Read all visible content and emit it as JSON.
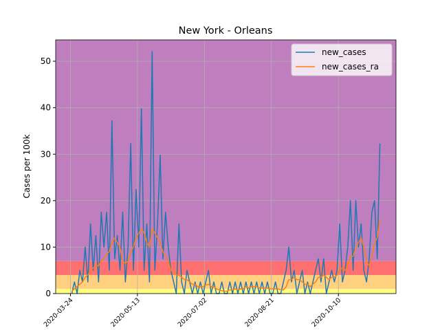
{
  "chart_data": {
    "type": "line",
    "title": "New York - Orleans",
    "ylabel": "Cases per 100k",
    "x": [
      "2020-03-25",
      "2020-03-27",
      "2020-03-29",
      "2020-03-31",
      "2020-04-02",
      "2020-04-04",
      "2020-04-06",
      "2020-04-08",
      "2020-04-10",
      "2020-04-12",
      "2020-04-14",
      "2020-04-16",
      "2020-04-18",
      "2020-04-20",
      "2020-04-22",
      "2020-04-24",
      "2020-04-26",
      "2020-04-28",
      "2020-04-30",
      "2020-05-02",
      "2020-05-04",
      "2020-05-06",
      "2020-05-08",
      "2020-05-10",
      "2020-05-12",
      "2020-05-14",
      "2020-05-16",
      "2020-05-18",
      "2020-05-20",
      "2020-05-22",
      "2020-05-24",
      "2020-05-26",
      "2020-05-28",
      "2020-05-30",
      "2020-06-01",
      "2020-06-03",
      "2020-06-05",
      "2020-06-07",
      "2020-06-09",
      "2020-06-11",
      "2020-06-13",
      "2020-06-15",
      "2020-06-17",
      "2020-06-19",
      "2020-06-21",
      "2020-06-23",
      "2020-06-25",
      "2020-06-27",
      "2020-06-29",
      "2020-07-01",
      "2020-07-03",
      "2020-07-05",
      "2020-07-07",
      "2020-07-09",
      "2020-07-11",
      "2020-07-13",
      "2020-07-15",
      "2020-07-17",
      "2020-07-19",
      "2020-07-21",
      "2020-07-23",
      "2020-07-25",
      "2020-07-27",
      "2020-07-29",
      "2020-07-31",
      "2020-08-02",
      "2020-08-04",
      "2020-08-06",
      "2020-08-08",
      "2020-08-10",
      "2020-08-12",
      "2020-08-14",
      "2020-08-16",
      "2020-08-18",
      "2020-08-20",
      "2020-08-22",
      "2020-08-24",
      "2020-08-26",
      "2020-08-28",
      "2020-08-30",
      "2020-09-01",
      "2020-09-03",
      "2020-09-05",
      "2020-09-07",
      "2020-09-09",
      "2020-09-11",
      "2020-09-13",
      "2020-09-15",
      "2020-09-17",
      "2020-09-19",
      "2020-09-21",
      "2020-09-23",
      "2020-09-25",
      "2020-09-27",
      "2020-09-29",
      "2020-10-01",
      "2020-10-03",
      "2020-10-05",
      "2020-10-07",
      "2020-10-09",
      "2020-10-11",
      "2020-10-13",
      "2020-10-15",
      "2020-10-17",
      "2020-10-19",
      "2020-10-21",
      "2020-10-23",
      "2020-10-25",
      "2020-10-27",
      "2020-10-29",
      "2020-10-31",
      "2020-11-02",
      "2020-11-04",
      "2020-11-06",
      "2020-11-08",
      "2020-11-10"
    ],
    "series": [
      {
        "name": "new_cases",
        "color": "#1f77b4",
        "values": [
          0,
          2.5,
          0,
          5,
          2.5,
          10,
          2.5,
          15,
          5,
          12.5,
          2.5,
          17.5,
          10,
          17.5,
          5,
          37.2,
          7.5,
          12.5,
          5,
          17.5,
          2.5,
          10,
          32.3,
          5,
          22.4,
          10,
          39.8,
          5,
          15,
          2.5,
          52.1,
          5,
          15,
          29.8,
          7.5,
          17.5,
          10,
          5,
          2.5,
          0,
          15,
          2.5,
          0,
          5,
          2.5,
          0,
          2.5,
          0,
          2.5,
          0,
          2.5,
          5,
          0,
          2.5,
          0,
          0,
          2.5,
          0,
          0,
          2.5,
          0,
          2.5,
          0,
          2.5,
          0,
          2.5,
          0,
          2.5,
          0,
          2.5,
          0,
          2.5,
          0,
          2.5,
          0,
          0,
          2.5,
          0,
          0,
          2.5,
          5,
          10,
          2.5,
          5,
          0,
          2.5,
          5,
          0,
          2.5,
          0,
          2.5,
          5,
          7.5,
          2.5,
          7.5,
          0,
          2.5,
          5,
          2.5,
          5,
          15,
          2.5,
          5,
          10,
          20,
          5,
          20,
          10,
          15,
          5,
          2.5,
          7.5,
          17.5,
          20,
          7.5,
          32.3
        ]
      },
      {
        "name": "new_cases_ra",
        "color": "#ff7f0e",
        "values": [
          0.5,
          1,
          1.5,
          2,
          2.5,
          3.5,
          4,
          5,
          5.5,
          6,
          6,
          7,
          7.5,
          8.5,
          9,
          11,
          12,
          11,
          10,
          7,
          6.5,
          7,
          9,
          10,
          12,
          13,
          14,
          13,
          11,
          10,
          14,
          13,
          12,
          11,
          9,
          8,
          7,
          5,
          4.5,
          4,
          4,
          3.5,
          3,
          3,
          2.5,
          2,
          2,
          1.5,
          1.5,
          1.5,
          1.8,
          2,
          1.5,
          1.5,
          1,
          0.8,
          0.6,
          0.5,
          0.5,
          0.8,
          0.8,
          1,
          0.8,
          1,
          1,
          1.5,
          1.2,
          1.5,
          1.5,
          1.5,
          1.2,
          1.2,
          1.2,
          1.2,
          1,
          1,
          1,
          1,
          0.8,
          0.8,
          1.5,
          3,
          3,
          3.5,
          3,
          3,
          2.5,
          2,
          2,
          1.5,
          2,
          2.5,
          3.5,
          3.5,
          4,
          3.5,
          3,
          3.5,
          3.5,
          4,
          5,
          5.5,
          5,
          6,
          8,
          8,
          10,
          11,
          12,
          10,
          7,
          6,
          8,
          11,
          12,
          16
        ]
      }
    ],
    "xlim": [
      "2020-03-13",
      "2020-11-22"
    ],
    "xticks": [
      "2020-03-24",
      "2020-05-13",
      "2020-07-02",
      "2020-08-21",
      "2020-10-10"
    ],
    "ylim": [
      0,
      54.6
    ],
    "yticks": [
      0,
      10,
      20,
      30,
      40,
      50
    ],
    "grid": true,
    "legend": "upper right",
    "bands": [
      {
        "from": 0,
        "to": 1,
        "color": "#ffff80"
      },
      {
        "from": 1,
        "to": 4,
        "color": "#ffd080"
      },
      {
        "from": 4,
        "to": 7,
        "color": "#ff7070"
      },
      {
        "from": 7,
        "to": 54.6,
        "color": "#bf7fbf"
      }
    ]
  }
}
